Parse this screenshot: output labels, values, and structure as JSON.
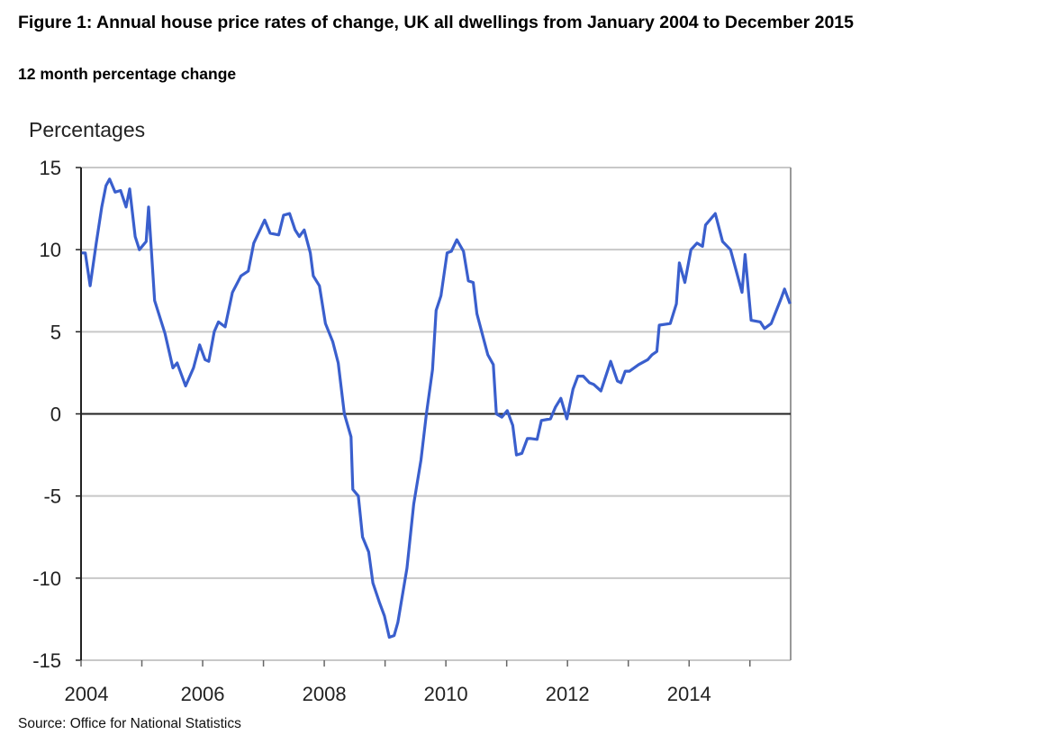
{
  "title": "Figure 1: Annual house price rates of change, UK all dwellings from January 2004 to December 2015",
  "subtitle": "12 month percentage change",
  "source": "Source: Office for National Statistics",
  "chart_data": {
    "type": "line",
    "title": "Figure 1: Annual house price rates of change, UK all dwellings from January 2004 to December 2015",
    "ylabel": "Percentages",
    "xlabel": "",
    "xlim": [
      2004,
      2015.67
    ],
    "ylim": [
      -15,
      15
    ],
    "yticks": [
      15,
      10,
      5,
      0,
      -5,
      -10,
      -15
    ],
    "xticks_labeled": [
      2004,
      2006,
      2008,
      2010,
      2012,
      2014
    ],
    "grid": true,
    "line_color": "#3a5fcd",
    "series": [
      {
        "name": "12 month percentage change",
        "x": [
          2004.01,
          2004.07,
          2004.15,
          2004.25,
          2004.34,
          2004.41,
          2004.47,
          2004.56,
          2004.65,
          2004.74,
          2004.8,
          2004.89,
          2004.96,
          2005.07,
          2005.11,
          2005.21,
          2005.38,
          2005.51,
          2005.58,
          2005.72,
          2005.85,
          2005.95,
          2006.04,
          2006.1,
          2006.19,
          2006.26,
          2006.37,
          2006.49,
          2006.63,
          2006.75,
          2006.84,
          2007.02,
          2007.11,
          2007.25,
          2007.33,
          2007.43,
          2007.52,
          2007.59,
          2007.67,
          2007.77,
          2007.82,
          2007.92,
          2008.02,
          2008.14,
          2008.23,
          2008.33,
          2008.44,
          2008.47,
          2008.56,
          2008.63,
          2008.73,
          2008.8,
          2008.91,
          2008.99,
          2009.07,
          2009.15,
          2009.21,
          2009.36,
          2009.47,
          2009.59,
          2009.68,
          2009.78,
          2009.84,
          2009.92,
          2010.02,
          2010.09,
          2010.18,
          2010.29,
          2010.37,
          2010.45,
          2010.51,
          2010.69,
          2010.78,
          2010.83,
          2010.92,
          2011.01,
          2011.1,
          2011.16,
          2011.25,
          2011.34,
          2011.4,
          2011.5,
          2011.57,
          2011.72,
          2011.8,
          2011.89,
          2011.99,
          2012.09,
          2012.17,
          2012.26,
          2012.36,
          2012.43,
          2012.55,
          2012.71,
          2012.82,
          2012.88,
          2012.95,
          2013.02,
          2013.17,
          2013.32,
          2013.39,
          2013.47,
          2013.51,
          2013.69,
          2013.79,
          2013.84,
          2013.93,
          2014.03,
          2014.13,
          2014.22,
          2014.27,
          2014.43,
          2014.55,
          2014.68,
          2014.87,
          2014.92,
          2015.02,
          2015.17,
          2015.24,
          2015.35,
          2015.51,
          2015.57,
          2015.66
        ],
        "y": [
          9.8,
          9.8,
          7.8,
          10.4,
          12.6,
          13.9,
          14.3,
          13.5,
          13.6,
          12.6,
          13.7,
          10.8,
          10.0,
          10.5,
          12.6,
          6.9,
          4.9,
          2.8,
          3.1,
          1.7,
          2.8,
          4.2,
          3.3,
          3.2,
          5.0,
          5.6,
          5.3,
          7.4,
          8.4,
          8.7,
          10.4,
          11.8,
          11.0,
          10.9,
          12.1,
          12.2,
          11.2,
          10.8,
          11.2,
          9.8,
          8.4,
          7.8,
          5.5,
          4.4,
          3.1,
          0.0,
          -1.4,
          -4.6,
          -5.0,
          -7.5,
          -8.4,
          -10.3,
          -11.5,
          -12.3,
          -13.6,
          -13.5,
          -12.7,
          -9.4,
          -5.5,
          -2.8,
          0.0,
          2.7,
          6.3,
          7.2,
          9.8,
          9.9,
          10.6,
          9.9,
          8.1,
          8.0,
          6.1,
          3.6,
          3.0,
          0.0,
          -0.2,
          0.2,
          -0.7,
          -2.5,
          -2.4,
          -1.5,
          -1.5,
          -1.55,
          -0.4,
          -0.3,
          0.4,
          0.95,
          -0.3,
          1.5,
          2.3,
          2.3,
          1.9,
          1.8,
          1.4,
          3.2,
          2.0,
          1.9,
          2.6,
          2.6,
          3.0,
          3.3,
          3.6,
          3.8,
          5.4,
          5.5,
          6.7,
          9.2,
          8.0,
          10.0,
          10.4,
          10.2,
          11.5,
          12.2,
          10.5,
          10.0,
          7.4,
          9.7,
          5.7,
          5.6,
          5.2,
          5.5,
          7.0,
          7.6,
          6.7
        ]
      }
    ]
  }
}
